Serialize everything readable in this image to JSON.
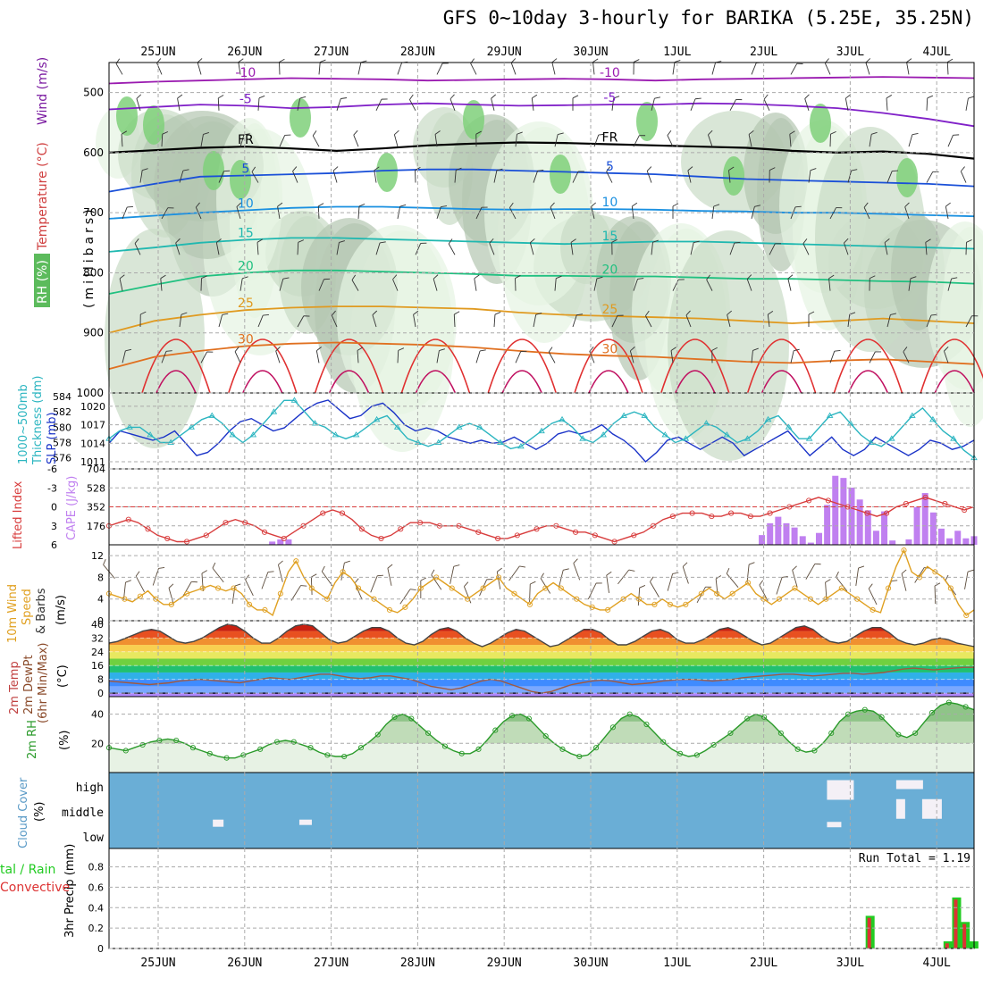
{
  "title": "GFS 0~10day 3-hourly for BARIKA (5.25E, 35.25N)",
  "date_labels": [
    "25JUN",
    "26JUN",
    "27JUN",
    "28JUN",
    "29JUN",
    "30JUN",
    "1JUL",
    "2JUL",
    "3JUL",
    "4JUL"
  ],
  "colors": {
    "grid": "#aaaaaa",
    "slp": "#1a33c8",
    "thick": "#2bb5c0",
    "li": "#d83c3c",
    "cape": "#c080f0",
    "wind": "#e0a020",
    "barb": "#5a4a3a",
    "rh": "#2a9a2a",
    "cloud": "#6aaed6",
    "precip_total": "#22cc22",
    "precip_conv": "#dd3333"
  },
  "chart_data": [
    {
      "panel": "upper_air",
      "type": "heatmap",
      "ylabel": "(millibars)",
      "ylabel_parts": [
        "RH (%)",
        "Temperature (°C)",
        "Wind (m/s)"
      ],
      "yticks": [
        500,
        600,
        700,
        800,
        900,
        1000
      ],
      "ylim": [
        1000,
        450
      ],
      "isotherms": [
        {
          "value": -10,
          "label": "-10",
          "color": "#9a1ab0",
          "p": [
            485,
            482,
            480,
            478,
            476,
            477,
            478,
            480,
            479,
            478,
            477,
            478,
            480,
            478,
            477,
            476,
            475,
            474,
            475,
            476
          ]
        },
        {
          "value": -5,
          "label": "-5",
          "color": "#8020c8",
          "p": [
            528,
            524,
            520,
            522,
            526,
            524,
            520,
            518,
            520,
            522,
            521,
            520,
            520,
            518,
            519,
            522,
            526,
            534,
            544,
            556
          ]
        },
        {
          "value": 0,
          "label": "FR",
          "color": "#000000",
          "p": [
            600,
            596,
            592,
            590,
            593,
            597,
            593,
            588,
            585,
            583,
            584,
            586,
            588,
            590,
            592,
            597,
            600,
            598,
            602,
            610
          ]
        },
        {
          "value": 5,
          "label": "5",
          "color": "#1a50d8",
          "p": [
            665,
            652,
            640,
            638,
            636,
            634,
            630,
            628,
            628,
            630,
            632,
            634,
            636,
            640,
            644,
            646,
            648,
            650,
            652,
            656
          ]
        },
        {
          "value": 10,
          "label": "10",
          "color": "#1a90e0",
          "p": [
            710,
            705,
            700,
            696,
            692,
            690,
            690,
            692,
            694,
            695,
            694,
            694,
            695,
            697,
            698,
            700,
            700,
            702,
            704,
            706
          ]
        },
        {
          "value": 15,
          "label": "15",
          "color": "#20b8b0",
          "p": [
            765,
            758,
            750,
            745,
            742,
            742,
            744,
            746,
            748,
            750,
            752,
            750,
            748,
            748,
            750,
            752,
            754,
            756,
            758,
            760
          ]
        },
        {
          "value": 20,
          "label": "20",
          "color": "#20c080",
          "p": [
            835,
            820,
            806,
            800,
            796,
            796,
            798,
            800,
            802,
            805,
            805,
            806,
            806,
            808,
            810,
            810,
            812,
            814,
            815,
            818
          ]
        },
        {
          "value": 25,
          "label": "25",
          "color": "#e09a20",
          "p": [
            900,
            880,
            870,
            862,
            858,
            856,
            856,
            858,
            860,
            866,
            870,
            872,
            874,
            876,
            880,
            884,
            880,
            876,
            880,
            884
          ]
        },
        {
          "value": 30,
          "label": "30",
          "color": "#e07020",
          "p": [
            960,
            940,
            930,
            922,
            918,
            916,
            918,
            920,
            924,
            930,
            935,
            938,
            940,
            944,
            948,
            950,
            946,
            944,
            948,
            952
          ]
        }
      ]
    },
    {
      "panel": "slp_thickness",
      "type": "line",
      "ylabel_left": "Thickness (dm)",
      "ylabel_left_full": "1000~500mb",
      "ylabel_right": "SLP (mb)",
      "yticks_left": [
        576,
        578,
        580,
        582,
        584
      ],
      "yticks_right": [
        1011,
        1014,
        1017,
        1020
      ],
      "series": [
        {
          "values": [
            1014,
            1016,
            1015.5,
            1015,
            1014.5,
            1015,
            1016,
            1014,
            1012,
            1012.5,
            1014,
            1016,
            1017.5,
            1018,
            1017,
            1016,
            1016.5,
            1018,
            1019.5,
            1020.5,
            1021,
            1019.5,
            1018,
            1018.5,
            1020,
            1020.5,
            1019,
            1017,
            1016,
            1016.5,
            1016,
            1015,
            1014.5,
            1014,
            1014.5,
            1014,
            1014.2,
            1015,
            1014,
            1013,
            1014,
            1015.5,
            1016,
            1015.5,
            1016,
            1017,
            1015.5,
            1014.5,
            1013,
            1011,
            1012.5,
            1014.5,
            1015,
            1014,
            1013,
            1014,
            1015,
            1014,
            1012,
            1013,
            1014,
            1015,
            1016,
            1014,
            1012,
            1013.5,
            1015,
            1013,
            1012,
            1013,
            1015,
            1014,
            1013,
            1012,
            1013,
            1014.5,
            1014,
            1013,
            1013.5,
            1014.5
          ]
        },
        {
          "values": [
            578.5,
            579.5,
            580,
            580,
            579,
            578,
            578,
            579,
            580,
            581,
            581.5,
            580.5,
            579,
            578,
            579,
            580.5,
            582,
            583.5,
            583.5,
            582,
            580.5,
            580,
            579,
            578.5,
            579,
            580,
            581,
            581.5,
            580,
            578.5,
            578,
            577.5,
            578,
            579,
            580,
            580.5,
            580,
            579,
            578,
            577.2,
            577.5,
            578.5,
            579.5,
            580.5,
            581,
            580,
            578.5,
            578,
            579,
            580.5,
            581.5,
            582,
            581.5,
            580,
            579,
            578,
            578.5,
            579.5,
            580.5,
            580,
            579,
            578,
            578.5,
            579.5,
            581,
            581.5,
            580,
            578.5,
            578.5,
            580,
            581.5,
            582,
            580.5,
            579,
            578,
            577.5,
            578.5,
            580,
            581.5,
            582.5,
            581,
            579.5,
            578.5,
            577,
            576
          ]
        }
      ]
    },
    {
      "panel": "cape_li",
      "type": "bar",
      "ylabel_left": "CAPE (J/kg)",
      "ylabel_right": "Lifted Index",
      "yticks_cape": [
        176,
        352,
        528,
        704
      ],
      "yticks_li": [
        -6,
        -3,
        0,
        3,
        6
      ],
      "li": [
        3,
        2.5,
        2,
        2.5,
        3.5,
        4.5,
        5,
        5.5,
        5.5,
        5,
        4.5,
        3.5,
        2.5,
        2,
        2.5,
        3,
        4,
        4.5,
        5,
        4,
        3,
        2,
        1,
        0.5,
        1,
        2,
        3.5,
        4.5,
        5,
        4.5,
        3.5,
        2.5,
        2.5,
        2.5,
        3,
        3,
        3,
        3.5,
        4,
        4.5,
        5,
        5,
        4.5,
        4,
        3.5,
        3,
        3,
        3.5,
        4,
        4,
        4.5,
        5,
        5.5,
        5,
        4.5,
        4,
        3,
        2,
        1.5,
        1,
        1,
        1,
        1.5,
        1.5,
        1,
        1,
        1.5,
        1.5,
        1,
        0.5,
        0,
        -0.5,
        -1,
        -1.5,
        -1,
        -0.5,
        0,
        0.5,
        1,
        1.5,
        1,
        0,
        -0.5,
        -1,
        -1.5,
        -1,
        -0.5,
        0,
        0.5,
        0
      ],
      "cape": [
        0,
        0,
        0,
        0,
        0,
        0,
        0,
        0,
        0,
        0,
        0,
        0,
        0,
        0,
        0,
        0,
        0,
        0,
        0,
        0,
        30,
        50,
        50,
        0,
        0,
        0,
        0,
        0,
        0,
        0,
        0,
        0,
        0,
        0,
        0,
        0,
        0,
        0,
        0,
        0,
        0,
        0,
        0,
        0,
        0,
        0,
        0,
        0,
        0,
        0,
        0,
        0,
        0,
        0,
        0,
        0,
        0,
        0,
        0,
        0,
        0,
        0,
        0,
        0,
        0,
        0,
        0,
        0,
        0,
        0,
        0,
        0,
        0,
        0,
        0,
        0,
        0,
        0,
        0,
        0,
        90,
        200,
        260,
        200,
        160,
        80,
        20,
        110,
        370,
        640,
        620,
        530,
        420,
        320,
        130,
        310,
        40,
        0,
        50,
        350,
        480,
        300,
        150,
        60,
        130,
        60,
        80
      ]
    },
    {
      "panel": "wind10m",
      "type": "line",
      "ylabel": "10m Wind Speed & Barbs (m/s)",
      "yticks": [
        0,
        4,
        8,
        12
      ],
      "ylim": [
        0,
        14
      ],
      "values": [
        5,
        4.5,
        4,
        3.5,
        4.5,
        5.5,
        4,
        3,
        3,
        4,
        5,
        5.5,
        6,
        6.5,
        6,
        5.5,
        6,
        5,
        3,
        2,
        2,
        1,
        5,
        9,
        11,
        8,
        6,
        5,
        4,
        7,
        9,
        8,
        6,
        5,
        4,
        3,
        2,
        1.5,
        2.5,
        4,
        6,
        7,
        8,
        7,
        6,
        5,
        4,
        5,
        6,
        7,
        8,
        6,
        5,
        4,
        3,
        5,
        6,
        7,
        6,
        5,
        4,
        3,
        2.5,
        2,
        2,
        3,
        4,
        5,
        4,
        3,
        3,
        4,
        3,
        2.5,
        3,
        4,
        5,
        6,
        5,
        4,
        5,
        6,
        7,
        5,
        4,
        3,
        4,
        5,
        6,
        5,
        4,
        3,
        4,
        5,
        6,
        5,
        4,
        3,
        2,
        1.5,
        6,
        10,
        13,
        9,
        8,
        10,
        9,
        8,
        6,
        3,
        1,
        2
      ]
    },
    {
      "panel": "temp2m",
      "type": "area",
      "ylabel": "2m Temp / 2m DewPt (6hr Min/Max) (°C)",
      "yticks": [
        0,
        8,
        16,
        24,
        32,
        40
      ],
      "ylim": [
        -2,
        42
      ],
      "temp": [
        29,
        30,
        32,
        34,
        36,
        37,
        36,
        33,
        30,
        29,
        30,
        32,
        35,
        38,
        40,
        39,
        36,
        32,
        29,
        29,
        32,
        36,
        39,
        40,
        39,
        35,
        31,
        29,
        30,
        33,
        36,
        38,
        38,
        36,
        32,
        29,
        28,
        30,
        34,
        37,
        38,
        36,
        32,
        29,
        27,
        29,
        32,
        35,
        37,
        36,
        33,
        30,
        27,
        28,
        31,
        34,
        37,
        37,
        35,
        31,
        28,
        28,
        30,
        33,
        36,
        37,
        35,
        31,
        29,
        29,
        31,
        34,
        37,
        38,
        36,
        33,
        30,
        28,
        29,
        32,
        35,
        38,
        39,
        37,
        33,
        30,
        29,
        30,
        33,
        36,
        38,
        38,
        35,
        31,
        29,
        28,
        29,
        31,
        32,
        31,
        29,
        28,
        27
      ],
      "dewpt": [
        7,
        6.5,
        6,
        5.5,
        5,
        5.5,
        6,
        7,
        7.5,
        8,
        7.5,
        7,
        6.5,
        6,
        7,
        8,
        9,
        8.5,
        8,
        9,
        10,
        11,
        11,
        10,
        9,
        8.5,
        9,
        10,
        10,
        9,
        8,
        6,
        4,
        3,
        2,
        3,
        5,
        7,
        8,
        7,
        5,
        3,
        1,
        0,
        1,
        3,
        5,
        6,
        7,
        7.5,
        7,
        6,
        5,
        5.5,
        6,
        7,
        7.5,
        8,
        8,
        7.5,
        7,
        7.5,
        8,
        9,
        9.5,
        10,
        10.5,
        11,
        11,
        10.5,
        10,
        10.5,
        11,
        11.5,
        11.5,
        11,
        11.5,
        12,
        13,
        14,
        14.5,
        14,
        13.5,
        14,
        14.5,
        15,
        15
      ]
    },
    {
      "panel": "rh2m",
      "type": "area",
      "ylabel": "2m RH (%)",
      "yticks": [
        20,
        40
      ],
      "ylim": [
        0,
        52
      ],
      "values": [
        17,
        16,
        15,
        17,
        19,
        21,
        22,
        23,
        22,
        20,
        17,
        15,
        13,
        11,
        10,
        10,
        12,
        14,
        16,
        19,
        21,
        22,
        21,
        19,
        17,
        14,
        12,
        11,
        11,
        13,
        17,
        21,
        26,
        33,
        38,
        40,
        37,
        32,
        27,
        22,
        18,
        15,
        13,
        13,
        16,
        22,
        29,
        35,
        39,
        40,
        37,
        31,
        25,
        20,
        16,
        13,
        11,
        12,
        17,
        24,
        31,
        37,
        40,
        38,
        33,
        27,
        21,
        16,
        13,
        11,
        12,
        15,
        19,
        23,
        27,
        32,
        37,
        40,
        38,
        33,
        27,
        21,
        16,
        14,
        15,
        20,
        27,
        35,
        40,
        42,
        43,
        42,
        38,
        32,
        26,
        24,
        27,
        34,
        41,
        46,
        48,
        47,
        45,
        43
      ]
    },
    {
      "panel": "cloud",
      "type": "heatmap",
      "ylabel": "Cloud Cover (%)",
      "ylabels": [
        "high",
        "middle",
        "low"
      ]
    },
    {
      "panel": "precip",
      "type": "bar",
      "ylabel": "3hr Precip (mm)",
      "ylabel_parts": [
        "Total / Rain",
        "Convective"
      ],
      "yticks": [
        0,
        0.2,
        0.4,
        0.6,
        0.8
      ],
      "ylim": [
        0,
        0.98
      ],
      "annotation": "Run Total = 1.19",
      "bars": [
        {
          "x": 8.85,
          "total": 0.32,
          "conv": 0.3
        },
        {
          "x": 9.75,
          "total": 0.07,
          "conv": 0.05
        },
        {
          "x": 9.85,
          "total": 0.5,
          "conv": 0.48
        },
        {
          "x": 9.95,
          "total": 0.26,
          "conv": 0.24
        },
        {
          "x": 10.05,
          "total": 0.07,
          "conv": 0.0
        }
      ]
    }
  ]
}
